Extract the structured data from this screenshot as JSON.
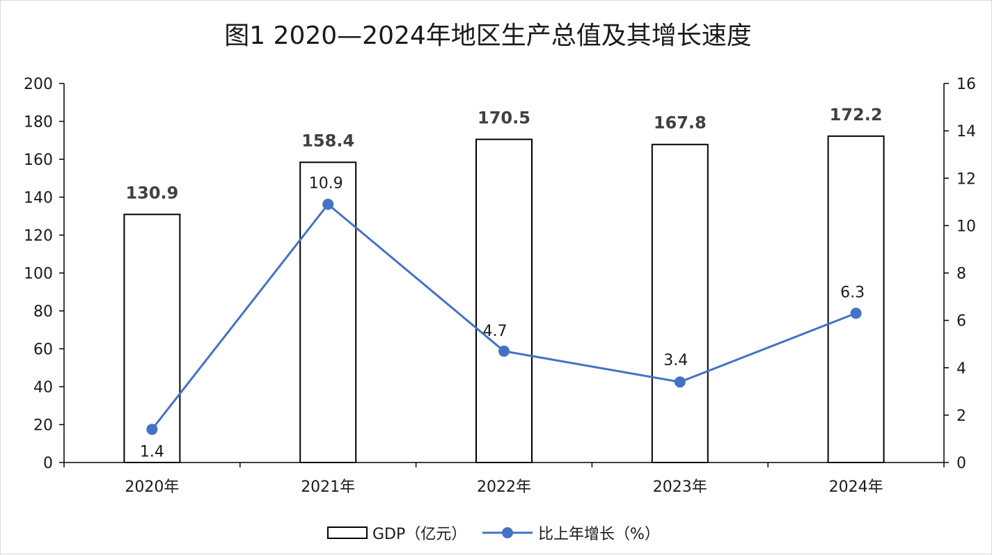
{
  "chart_data": {
    "type": "bar",
    "title": "图1   2020—2024年地区生产总值及其增长速度",
    "categories": [
      "2020年",
      "2021年",
      "2022年",
      "2023年",
      "2024年"
    ],
    "series": [
      {
        "name": "GDP（亿元）",
        "type": "bar",
        "axis": "left",
        "values": [
          130.9,
          158.4,
          170.5,
          167.8,
          172.2
        ],
        "labels": [
          "130.9",
          "158.4",
          "170.5",
          "167.8",
          "172.2"
        ]
      },
      {
        "name": "比上年增长（%）",
        "type": "line",
        "axis": "right",
        "values": [
          1.4,
          10.9,
          4.7,
          3.4,
          6.3
        ],
        "labels": [
          "1.4",
          "10.9",
          "4.7",
          "3.4",
          "6.3"
        ]
      }
    ],
    "ylim_left": [
      0,
      200
    ],
    "yticks_left": [
      "0",
      "20",
      "40",
      "60",
      "80",
      "100",
      "120",
      "140",
      "160",
      "180",
      "200"
    ],
    "ylim_right": [
      0,
      16
    ],
    "yticks_right": [
      "0",
      "2",
      "4",
      "6",
      "8",
      "10",
      "12",
      "14",
      "16"
    ],
    "grid": false,
    "legend": "bottom",
    "colors": {
      "bar_fill": "#ffffff",
      "bar_stroke": "#000000",
      "line": "#4472c4",
      "bar_label": "#404040",
      "axis": "#000000"
    }
  }
}
